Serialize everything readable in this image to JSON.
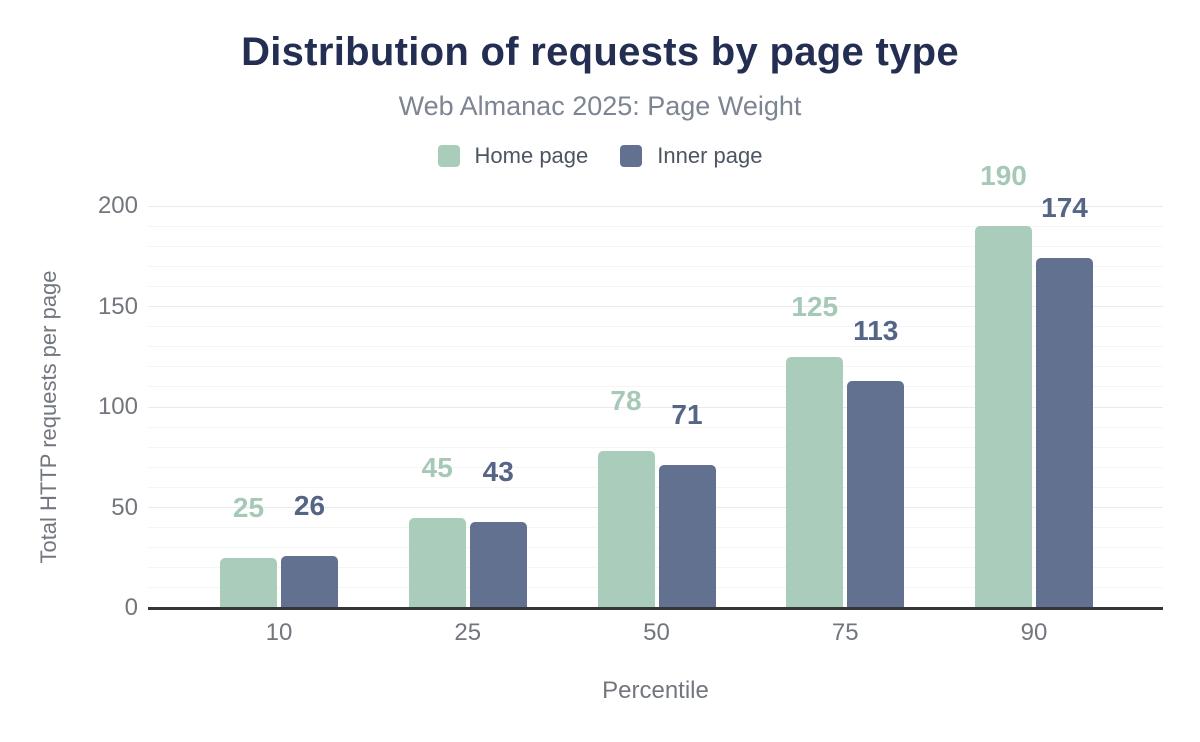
{
  "chart_data": {
    "type": "bar",
    "title": "Distribution of requests by page type",
    "subtitle": "Web Almanac 2025: Page Weight",
    "categories": [
      "10",
      "25",
      "50",
      "75",
      "90"
    ],
    "series": [
      {
        "name": "Home page",
        "values": [
          25,
          45,
          78,
          125,
          190
        ],
        "color": "#a9ccbb",
        "label_color": "#a6c9b7"
      },
      {
        "name": "Inner page",
        "values": [
          26,
          43,
          71,
          113,
          174
        ],
        "color": "#61718f",
        "label_color": "#546586"
      }
    ],
    "xlabel": "Percentile",
    "ylabel": "Total HTTP requests per page",
    "ylim": [
      0,
      200
    ],
    "yticks": [
      "0",
      "50",
      "100",
      "150",
      "200"
    ],
    "grid": {
      "orientation": "horizontal",
      "minor_step": 10,
      "major_step": 50
    },
    "legend_position": "top",
    "data_labels": true,
    "axis_line_color": "#35363a",
    "title_color": "#232e52",
    "subtitle_color": "#7d8593",
    "axis_text_color": "#72777e"
  }
}
